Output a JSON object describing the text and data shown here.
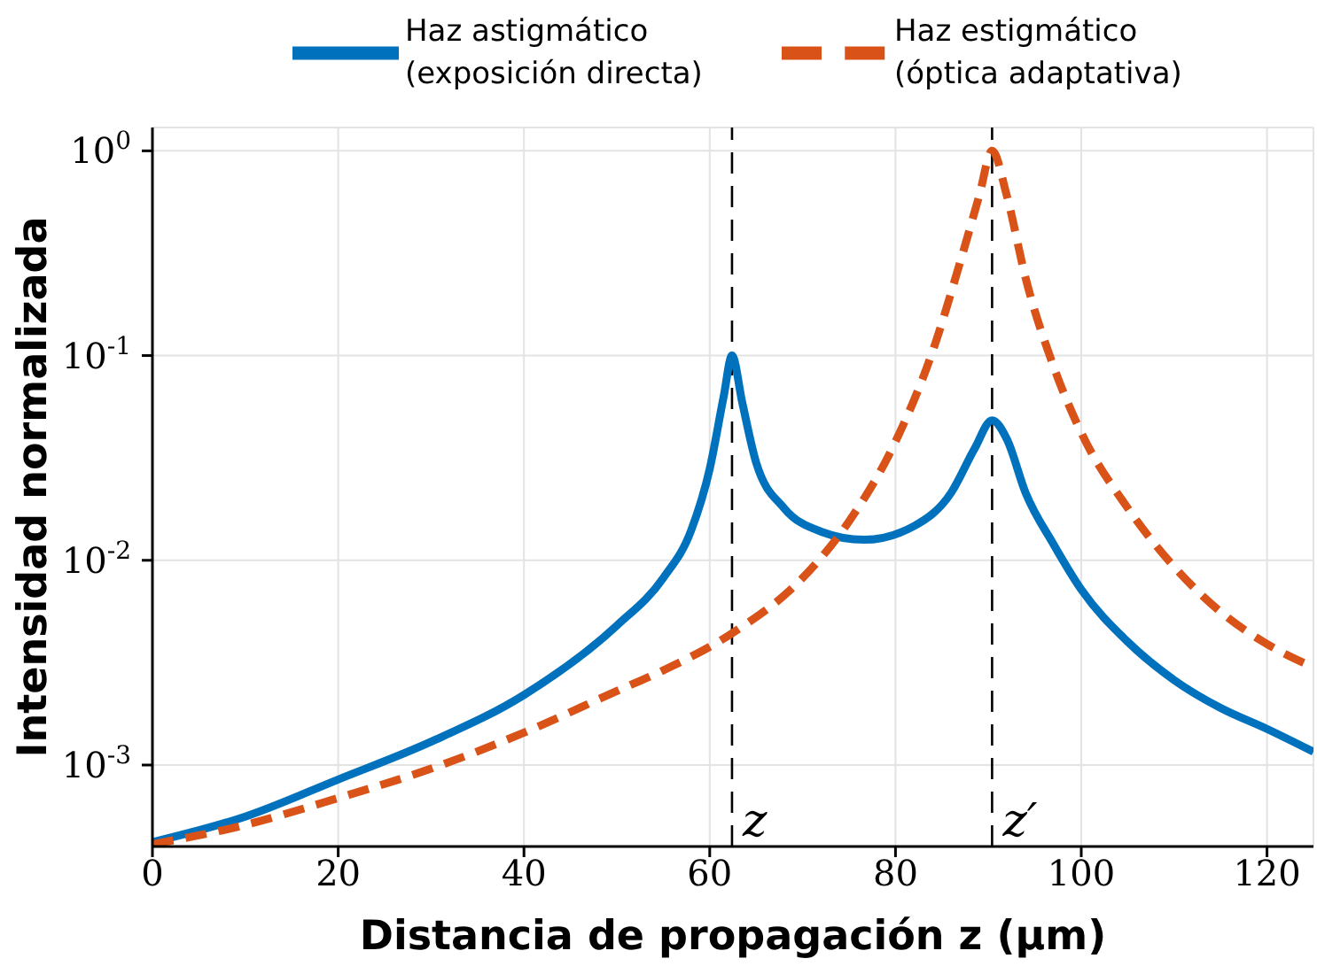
{
  "chart_data": {
    "type": "line",
    "xlabel": "Distancia de propagación z (μm)",
    "ylabel": "Intensidad normalizada",
    "xlim": [
      0,
      125
    ],
    "xticks": [
      0,
      20,
      40,
      60,
      80,
      100,
      120
    ],
    "ylim": [
      0.0004,
      1.3
    ],
    "yticks": [
      {
        "value": 0.001,
        "label": "10$^{-3}$"
      },
      {
        "value": 0.01,
        "label": "10$^{-2}$"
      },
      {
        "value": 0.1,
        "label": "10$^{-1}$"
      },
      {
        "value": 1,
        "label": "10$^{0}$"
      }
    ],
    "log": "y",
    "grid": true,
    "legend": "top",
    "marker": "none",
    "series": [
      {
        "name": "Haz astigmático (exposición directa)",
        "color": "#0072bd",
        "line_style": "solid",
        "x": [
          0,
          10,
          20,
          30,
          40,
          50,
          55,
          58,
          60,
          61.5,
          62.4,
          63.5,
          65,
          68,
          72,
          76.6,
          82,
          86,
          88.5,
          90.4,
          92,
          94,
          97,
          100,
          105,
          110,
          115,
          120,
          125
        ],
        "values": [
          0.00042,
          0.00056,
          0.00085,
          0.0013,
          0.0022,
          0.0048,
          0.0082,
          0.014,
          0.028,
          0.063,
          0.1,
          0.059,
          0.03,
          0.018,
          0.0138,
          0.0126,
          0.0147,
          0.0214,
          0.035,
          0.0483,
          0.039,
          0.0214,
          0.012,
          0.0072,
          0.004,
          0.0026,
          0.0019,
          0.0015,
          0.00116
        ]
      },
      {
        "name": "Haz estigmático (óptica adaptativa)",
        "color": "#d95319",
        "line_style": "dashed",
        "x": [
          0,
          10,
          20,
          30,
          40,
          50,
          55,
          62.4,
          70,
          75,
          80,
          84,
          87,
          89,
          90.4,
          92,
          94,
          97,
          100,
          105,
          110,
          115,
          120,
          125
        ],
        "values": [
          0.00041,
          0.00051,
          0.00069,
          0.00096,
          0.00144,
          0.0023,
          0.0029,
          0.0044,
          0.0082,
          0.0155,
          0.038,
          0.105,
          0.29,
          0.6,
          1,
          0.6,
          0.24,
          0.089,
          0.042,
          0.018,
          0.0093,
          0.0056,
          0.0039,
          0.003
        ]
      }
    ],
    "ref_lines": [
      {
        "axis": "x",
        "value": 62.4,
        "label": "z",
        "line_style": "dashed",
        "color": "#000000"
      },
      {
        "axis": "x",
        "value": 90.4,
        "label": "z′",
        "line_style": "dashed",
        "color": "#000000"
      }
    ]
  }
}
